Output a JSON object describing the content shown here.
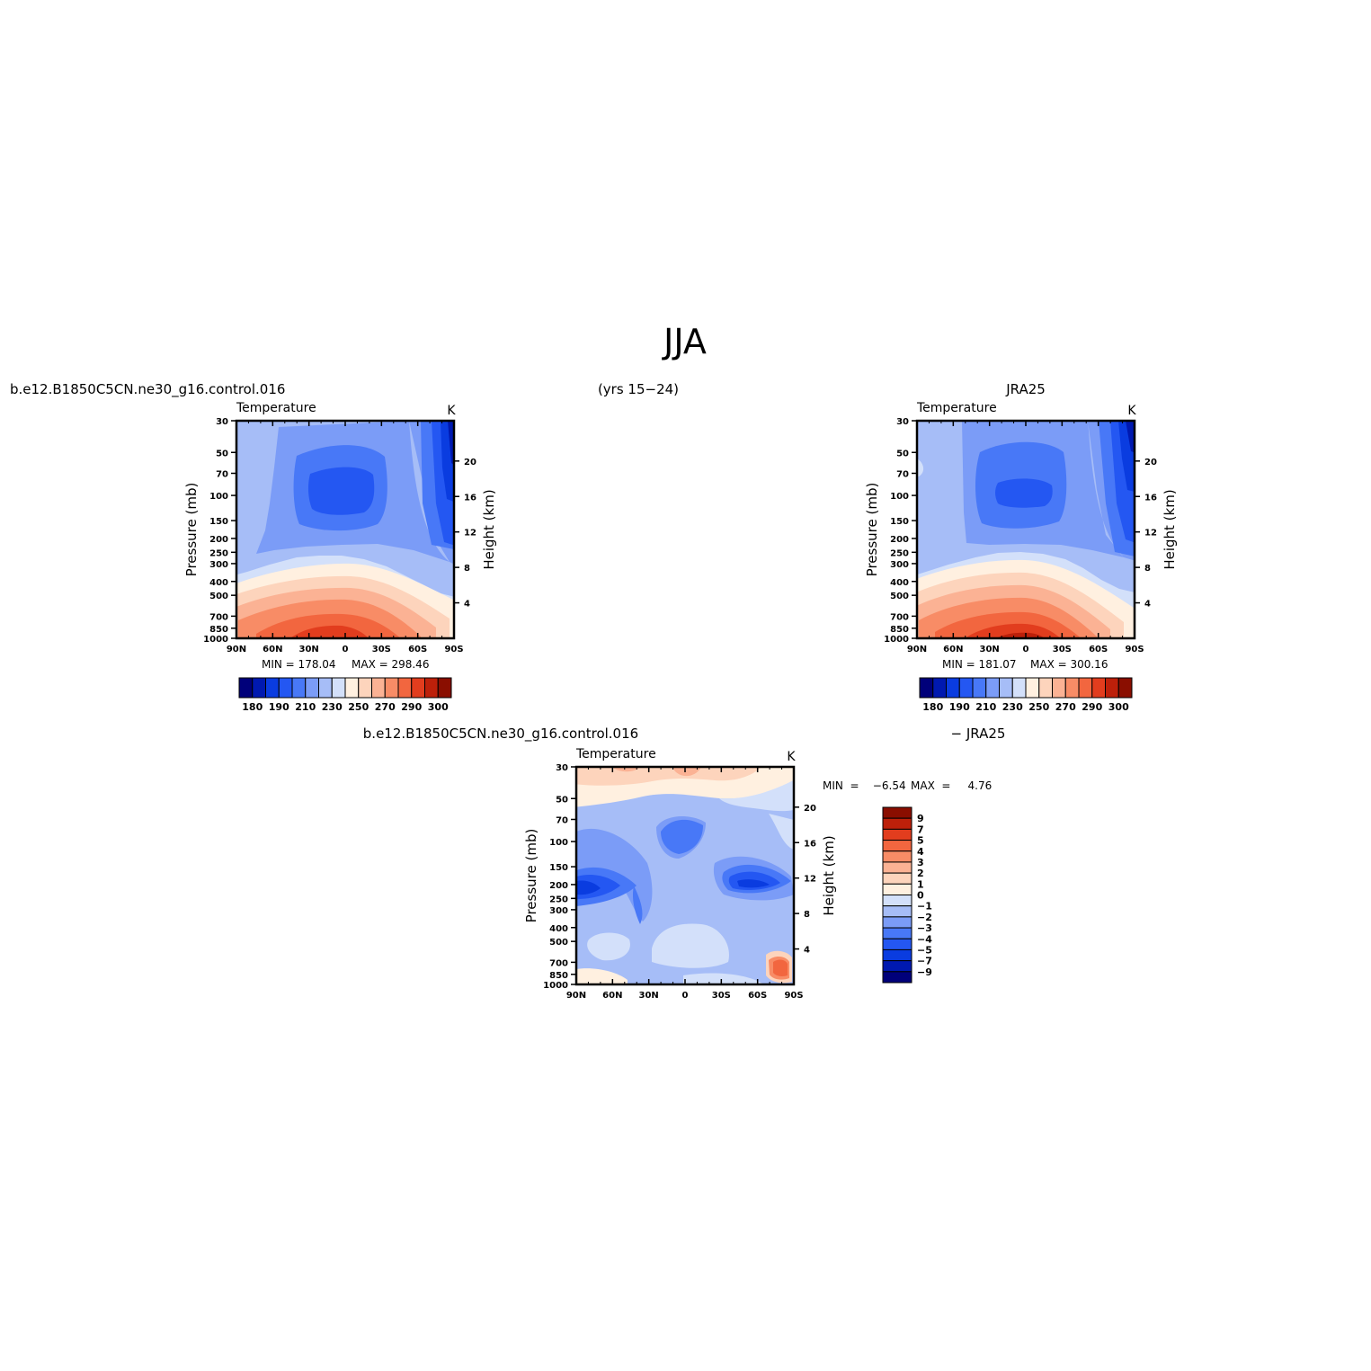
{
  "figure": {
    "title": "JJA",
    "case_name": "b.e12.B1850C5CN.ne30_g16.control.016",
    "years": "(yrs 15−24)",
    "obs_name": "JRA25",
    "diff_case": "b.e12.B1850C5CN.ne30_g16.control.016",
    "diff_obs": "− JRA25"
  },
  "chart_data": [
    {
      "id": "model",
      "type": "heatmap",
      "variable": "Temperature",
      "units": "K",
      "ylabel": "Pressure  (mb)",
      "y2label": "Height  (km)",
      "x_ticks": [
        "90N",
        "60N",
        "30N",
        "0",
        "30S",
        "60S",
        "90S"
      ],
      "y_ticks": [
        "30",
        "50",
        "70",
        "100",
        "150",
        "200",
        "250",
        "300",
        "400",
        "500",
        "700",
        "850",
        "1000"
      ],
      "y2_ticks": [
        "20",
        "16",
        "12",
        "8",
        "4"
      ],
      "min_label": "MIN  =  178.04",
      "max_label": "MAX  =  298.46",
      "min": 178.04,
      "max": 298.46,
      "colorbar_ticks": [
        "180",
        "190",
        "210",
        "230",
        "250",
        "270",
        "290",
        "300"
      ],
      "colors": [
        "#00007a",
        "#0019b0",
        "#0a3ce0",
        "#2457f2",
        "#4878f7",
        "#7b9cf7",
        "#a6bdf7",
        "#d3e0fa",
        "#fff0e0",
        "#fdd4bc",
        "#fbb294",
        "#f88c66",
        "#f2663f",
        "#e23d1e",
        "#bd200a",
        "#8a0e00"
      ]
    },
    {
      "id": "obs",
      "type": "heatmap",
      "variable": "Temperature",
      "units": "K",
      "ylabel": "Pressure  (mb)",
      "y2label": "Height  (km)",
      "x_ticks": [
        "90N",
        "60N",
        "30N",
        "0",
        "30S",
        "60S",
        "90S"
      ],
      "y_ticks": [
        "30",
        "50",
        "70",
        "100",
        "150",
        "200",
        "250",
        "300",
        "400",
        "500",
        "700",
        "850",
        "1000"
      ],
      "y2_ticks": [
        "20",
        "16",
        "12",
        "8",
        "4"
      ],
      "min_label": "MIN  =  181.07",
      "max_label": "MAX  =  300.16",
      "min": 181.07,
      "max": 300.16,
      "colorbar_ticks": [
        "180",
        "190",
        "210",
        "230",
        "250",
        "270",
        "290",
        "300"
      ],
      "colors": [
        "#00007a",
        "#0019b0",
        "#0a3ce0",
        "#2457f2",
        "#4878f7",
        "#7b9cf7",
        "#a6bdf7",
        "#d3e0fa",
        "#fff0e0",
        "#fdd4bc",
        "#fbb294",
        "#f88c66",
        "#f2663f",
        "#e23d1e",
        "#bd200a",
        "#8a0e00"
      ]
    },
    {
      "id": "diff",
      "type": "heatmap",
      "variable": "Temperature",
      "units": "K",
      "ylabel": "Pressure  (mb)",
      "y2label": "Height  (km)",
      "x_ticks": [
        "90N",
        "60N",
        "30N",
        "0",
        "30S",
        "60S",
        "90S"
      ],
      "y_ticks": [
        "30",
        "50",
        "70",
        "100",
        "150",
        "200",
        "250",
        "300",
        "400",
        "500",
        "700",
        "850",
        "1000"
      ],
      "y2_ticks": [
        "20",
        "16",
        "12",
        "8",
        "4"
      ],
      "min_label": "MIN  =    −6.54",
      "max_label": "MAX  =     4.76",
      "min": -6.54,
      "max": 4.76,
      "colorbar_ticks": [
        "9",
        "7",
        "5",
        "4",
        "3",
        "2",
        "1",
        "0",
        "−1",
        "−2",
        "−3",
        "−4",
        "−5",
        "−7",
        "−9"
      ],
      "colors": [
        "#8a0e00",
        "#bd200a",
        "#e23d1e",
        "#f2663f",
        "#f88c66",
        "#fbb294",
        "#fdd4bc",
        "#fff0e0",
        "#d3e0fa",
        "#a6bdf7",
        "#7b9cf7",
        "#4878f7",
        "#2457f2",
        "#0a3ce0",
        "#0019b0",
        "#00007a"
      ]
    }
  ]
}
